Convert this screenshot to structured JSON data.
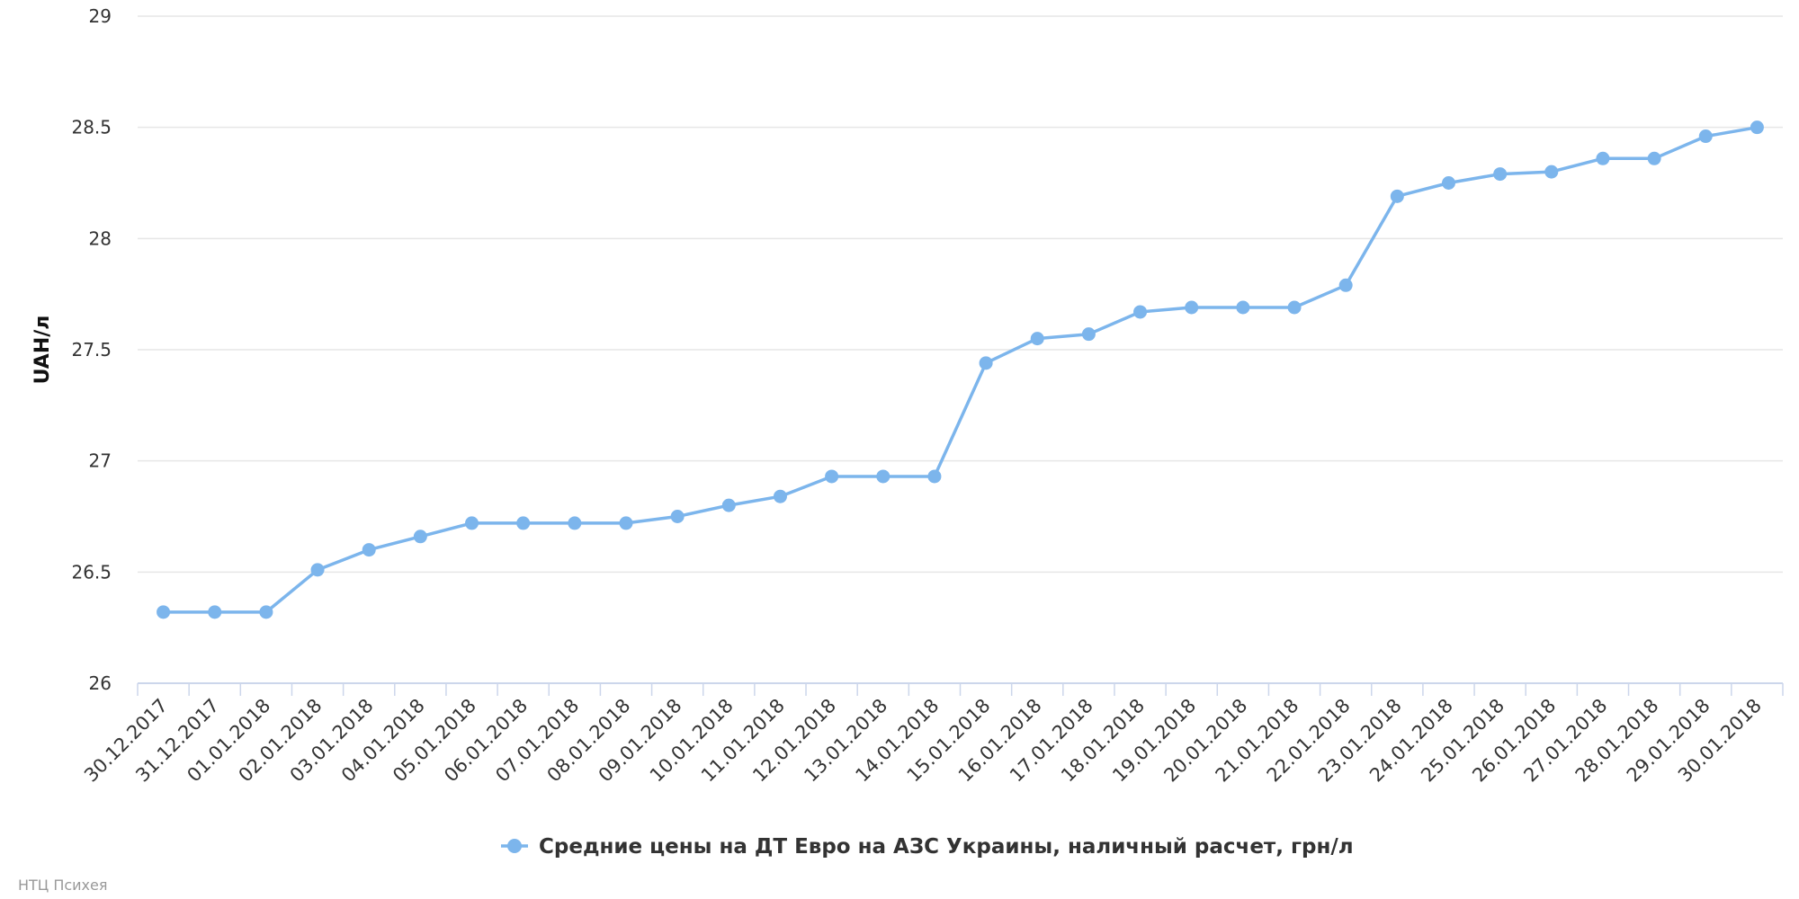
{
  "chart_data": {
    "type": "line",
    "title": "",
    "xlabel": "",
    "ylabel": "UAH/л",
    "ylim": [
      26,
      29
    ],
    "yticks": [
      "26",
      "26.5",
      "27",
      "27.5",
      "28",
      "28.5",
      "29"
    ],
    "grid": true,
    "legend_position": "bottom-center",
    "categories": [
      "30.12.2017",
      "31.12.2017",
      "01.01.2018",
      "02.01.2018",
      "03.01.2018",
      "04.01.2018",
      "05.01.2018",
      "06.01.2018",
      "07.01.2018",
      "08.01.2018",
      "09.01.2018",
      "10.01.2018",
      "11.01.2018",
      "12.01.2018",
      "13.01.2018",
      "14.01.2018",
      "15.01.2018",
      "16.01.2018",
      "17.01.2018",
      "18.01.2018",
      "19.01.2018",
      "20.01.2018",
      "21.01.2018",
      "22.01.2018",
      "23.01.2018",
      "24.01.2018",
      "25.01.2018",
      "26.01.2018",
      "27.01.2018",
      "28.01.2018",
      "29.01.2018",
      "30.01.2018"
    ],
    "series": [
      {
        "name": "Средние цены на ДТ Евро на АЗС Украины, наличный расчет, грн/л",
        "color": "#7cb5ec",
        "values": [
          26.32,
          26.32,
          26.32,
          26.51,
          26.6,
          26.66,
          26.72,
          26.72,
          26.72,
          26.72,
          26.75,
          26.8,
          26.84,
          26.93,
          26.93,
          26.93,
          27.44,
          27.55,
          27.57,
          27.67,
          27.69,
          27.69,
          27.69,
          27.79,
          28.19,
          28.25,
          28.29,
          28.3,
          28.36,
          28.36,
          28.46,
          28.5
        ]
      }
    ]
  },
  "credits": "НТЦ Психея",
  "colors": {
    "series": "#7cb5ec",
    "grid": "#e6e6e6",
    "axis": "#ccd6eb"
  }
}
